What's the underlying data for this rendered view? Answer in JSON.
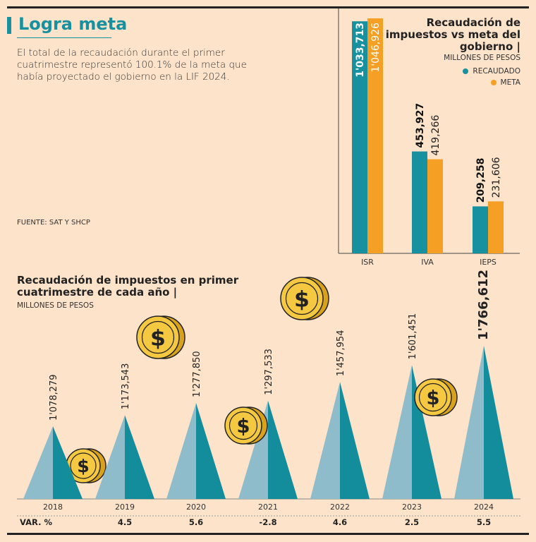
{
  "header": {
    "title": "Logra meta",
    "description": "El total de la recaudación durante el primer cuatrimestre representó 100.1% de la meta que había proyectado el gobierno en la LIF 2024.",
    "source": "FUENTE: SAT Y SHCP"
  },
  "colors": {
    "recaudado": "#17919f",
    "meta": "#f5a024",
    "tri_light": "#8fbccb",
    "tri_dark": "#138c9c",
    "coin": "#f5c842"
  },
  "chart_data": [
    {
      "type": "bar",
      "title": "Recaudación de impuestos vs meta del gobierno |",
      "ylabel": "MILLONES DE PESOS",
      "categories": [
        "ISR",
        "IVA",
        "IEPS"
      ],
      "series": [
        {
          "name": "RECAUDADO",
          "values": [
            1033713,
            453927,
            209258
          ],
          "labels": [
            "1'033,713",
            "453,927",
            "209,258"
          ]
        },
        {
          "name": "META",
          "values": [
            1046926,
            419266,
            231606
          ],
          "labels": [
            "1'046,926",
            "419,266",
            "231,606"
          ]
        }
      ],
      "ylim": [
        0,
        1050000
      ],
      "legend": "top-right"
    },
    {
      "type": "area",
      "title": "Recaudación de impuestos en primer cuatrimestre de cada año |",
      "ylabel": "MILLONES DE PESOS",
      "categories": [
        "2018",
        "2019",
        "2020",
        "2021",
        "2022",
        "2023",
        "2024"
      ],
      "values": [
        1078279,
        1173543,
        1277850,
        1297533,
        1457954,
        1601451,
        1766612
      ],
      "labels": [
        "1'078,279",
        "1'173,543",
        "1'277,850",
        "1'297,533",
        "1'457,954",
        "1'601,451",
        "1'766,612"
      ],
      "var_label": "VAR. %",
      "var_values": [
        "",
        "4.5",
        "5.6",
        "-2.8",
        "4.6",
        "2.5",
        "5.5"
      ]
    }
  ]
}
